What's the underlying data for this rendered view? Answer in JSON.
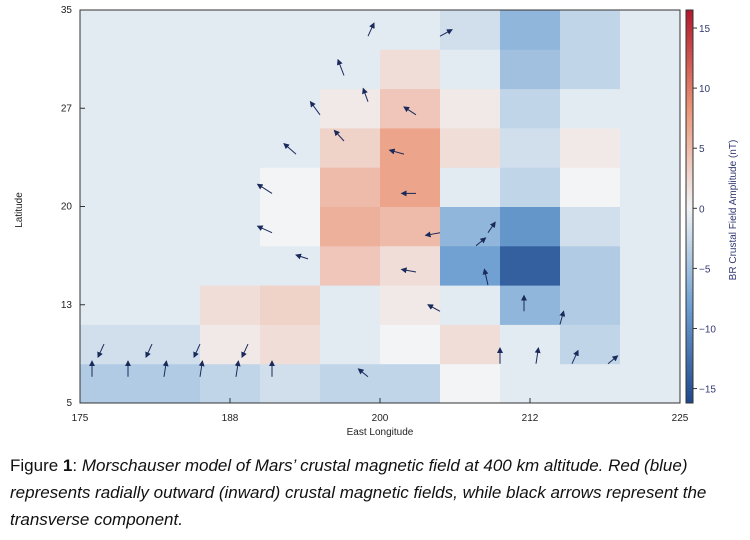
{
  "chart_data": {
    "type": "heatmap",
    "x_label": "East Longitude",
    "y_label": "Latitude",
    "colorbar_label": "BR Crustal Field Amplitude (nT)",
    "xlim": [
      175,
      225
    ],
    "ylim": [
      5,
      35
    ],
    "xticks": [
      175,
      {
        "value": 187.5,
        "label": "188"
      },
      200,
      {
        "value": 212.5,
        "label": "212"
      },
      225
    ],
    "yticks": [
      5,
      {
        "value": 12.5,
        "label": "13"
      },
      20,
      {
        "value": 27.5,
        "label": "27"
      },
      35
    ],
    "x_edges": [
      175,
      180,
      185,
      190,
      195,
      200,
      205,
      210,
      215,
      220,
      225
    ],
    "y_edges": [
      5,
      8,
      11,
      14,
      17,
      20,
      23,
      26,
      29,
      32,
      35
    ],
    "z": [
      [
        -4,
        -4,
        -3,
        -2,
        -3,
        -3,
        0,
        -1,
        -1,
        -1
      ],
      [
        -2,
        -2,
        1,
        2,
        -1,
        0,
        2,
        -1,
        -3,
        -1
      ],
      [
        -1,
        -1,
        2,
        3,
        -1,
        1,
        -1,
        -6,
        -4,
        -1
      ],
      [
        -1,
        -1,
        -1,
        -1,
        4,
        2,
        -8,
        -14,
        -4,
        -1
      ],
      [
        -1,
        -1,
        -1,
        0,
        6,
        5,
        -6,
        -9,
        -2,
        -1
      ],
      [
        -1,
        -1,
        -1,
        0,
        5,
        7,
        -1,
        -3,
        0,
        -1
      ],
      [
        -1,
        -1,
        -1,
        -1,
        3,
        7,
        2,
        -2,
        1,
        -1
      ],
      [
        -1,
        -1,
        -1,
        -1,
        1,
        4,
        1,
        -3,
        -1,
        -1
      ],
      [
        -1,
        -1,
        -1,
        -1,
        -1,
        2,
        -1,
        -5,
        -3,
        -1
      ],
      [
        -1,
        -1,
        -1,
        -1,
        -1,
        -1,
        -2,
        -6,
        -3,
        -1
      ]
    ],
    "clim": [
      -16.2,
      16.5
    ],
    "cticks": [
      {
        "value": 15,
        "label": "15"
      },
      {
        "value": 10,
        "label": "10"
      },
      {
        "value": 5,
        "label": "5"
      },
      0,
      {
        "value": -5,
        "label": "−5"
      },
      {
        "value": -10,
        "label": "−10"
      },
      {
        "value": -15,
        "label": "−15"
      }
    ],
    "arrow_color": "#1a2a5a",
    "arrows": [
      {
        "lon": 176,
        "lat": 7,
        "u": 0,
        "v": 1.2
      },
      {
        "lon": 179,
        "lat": 7,
        "u": 0,
        "v": 1.2
      },
      {
        "lon": 182,
        "lat": 7,
        "u": 0.2,
        "v": 1.2
      },
      {
        "lon": 185,
        "lat": 7,
        "u": 0.2,
        "v": 1.2
      },
      {
        "lon": 188,
        "lat": 7,
        "u": 0.2,
        "v": 1.2
      },
      {
        "lon": 191,
        "lat": 7,
        "u": 0,
        "v": 1.2
      },
      {
        "lon": 177,
        "lat": 9.5,
        "u": -0.5,
        "v": -1
      },
      {
        "lon": 181,
        "lat": 9.5,
        "u": -0.5,
        "v": -1
      },
      {
        "lon": 185,
        "lat": 9.5,
        "u": -0.5,
        "v": -1
      },
      {
        "lon": 189,
        "lat": 9.5,
        "u": -0.5,
        "v": -1
      },
      {
        "lon": 191,
        "lat": 18,
        "u": -1.2,
        "v": 0.5
      },
      {
        "lon": 191,
        "lat": 21,
        "u": -1.2,
        "v": 0.7
      },
      {
        "lon": 193,
        "lat": 24,
        "u": -1,
        "v": 0.8
      },
      {
        "lon": 195,
        "lat": 27,
        "u": -0.8,
        "v": 1
      },
      {
        "lon": 197,
        "lat": 30,
        "u": -0.5,
        "v": 1.2
      },
      {
        "lon": 199,
        "lat": 33,
        "u": 0.5,
        "v": 1
      },
      {
        "lon": 194,
        "lat": 16,
        "u": -1,
        "v": 0.3
      },
      {
        "lon": 197,
        "lat": 25,
        "u": -0.8,
        "v": 0.8
      },
      {
        "lon": 199,
        "lat": 28,
        "u": -0.4,
        "v": 1
      },
      {
        "lon": 203,
        "lat": 27,
        "u": -1,
        "v": 0.6
      },
      {
        "lon": 202,
        "lat": 24,
        "u": -1.2,
        "v": 0.3
      },
      {
        "lon": 203,
        "lat": 21,
        "u": -1.2,
        "v": 0
      },
      {
        "lon": 205,
        "lat": 18,
        "u": -1.2,
        "v": -0.2
      },
      {
        "lon": 203,
        "lat": 15,
        "u": -1.2,
        "v": 0.2
      },
      {
        "lon": 205,
        "lat": 12,
        "u": -1,
        "v": 0.5
      },
      {
        "lon": 210,
        "lat": 8,
        "u": 0,
        "v": 1.2
      },
      {
        "lon": 213,
        "lat": 8,
        "u": 0.2,
        "v": 1.2
      },
      {
        "lon": 216,
        "lat": 8,
        "u": 0.5,
        "v": 1
      },
      {
        "lon": 219,
        "lat": 8,
        "u": 0.8,
        "v": 0.6
      },
      {
        "lon": 212,
        "lat": 12,
        "u": 0,
        "v": 1.2
      },
      {
        "lon": 215,
        "lat": 11,
        "u": 0.3,
        "v": 1
      },
      {
        "lon": 209,
        "lat": 14,
        "u": -0.3,
        "v": 1.2
      },
      {
        "lon": 208,
        "lat": 17,
        "u": 0.8,
        "v": 0.6
      },
      {
        "lon": 209,
        "lat": 18,
        "u": 0.6,
        "v": 0.8
      },
      {
        "lon": 205,
        "lat": 33,
        "u": 1,
        "v": 0.5
      },
      {
        "lon": 199,
        "lat": 7,
        "u": -0.8,
        "v": 0.6
      }
    ]
  },
  "caption": {
    "prefix": "Figure ",
    "number": "1",
    "separator": ": ",
    "text": "Morschauser model of Mars’ crustal magnetic field at 400 km altitude. Red (blue) represents radially outward (inward) crustal magnetic fields, while black arrows represent the transverse component."
  }
}
